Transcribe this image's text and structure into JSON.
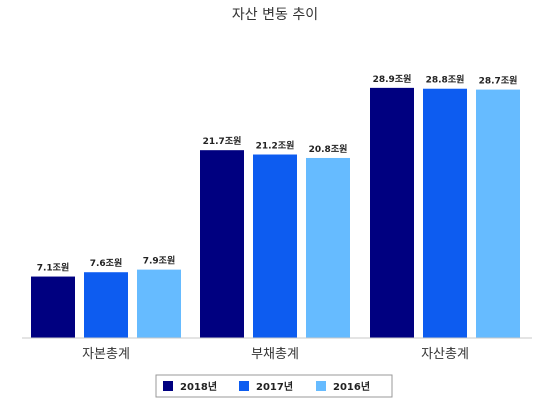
{
  "chart_data": {
    "type": "bar",
    "title": "자산 변동 추이",
    "unit_suffix": "조원",
    "categories": [
      "자본총계",
      "부채총계",
      "자산총계"
    ],
    "series": [
      {
        "name": "2018년",
        "color": "#000080",
        "values": [
          7.1,
          21.7,
          28.9
        ]
      },
      {
        "name": "2017년",
        "color": "#0d5cf0",
        "values": [
          7.6,
          21.2,
          28.8
        ]
      },
      {
        "name": "2016년",
        "color": "#66bbff",
        "values": [
          7.9,
          20.8,
          28.7
        ]
      }
    ],
    "ylim": [
      0,
      29
    ],
    "grid": false,
    "legend_position": "bottom"
  }
}
